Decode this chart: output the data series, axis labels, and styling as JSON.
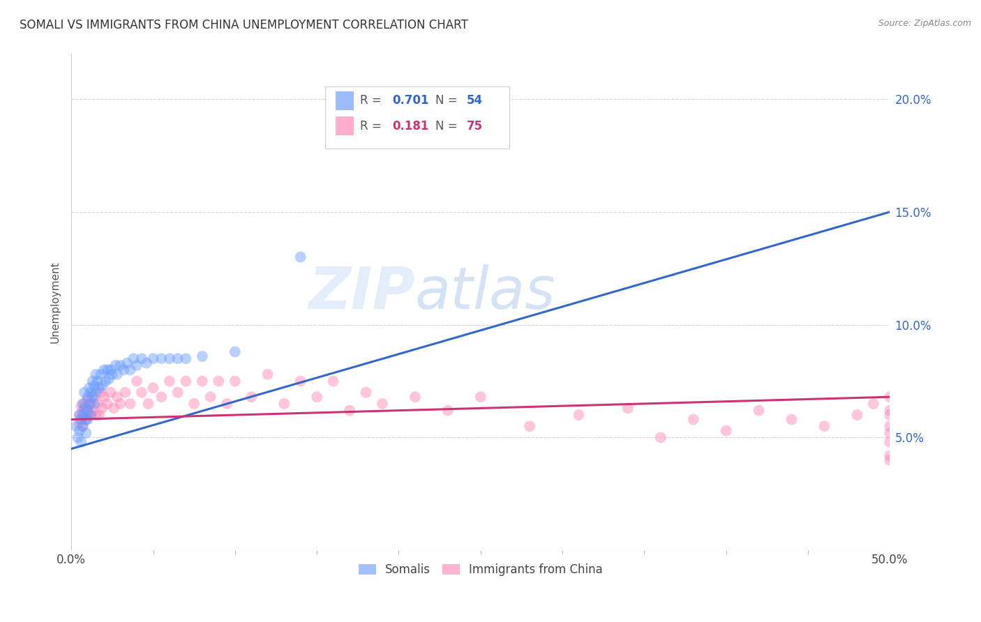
{
  "title": "SOMALI VS IMMIGRANTS FROM CHINA UNEMPLOYMENT CORRELATION CHART",
  "source": "Source: ZipAtlas.com",
  "ylabel": "Unemployment",
  "xlim": [
    0.0,
    0.5
  ],
  "ylim": [
    0.0,
    0.22
  ],
  "yticks": [
    0.05,
    0.1,
    0.15,
    0.2
  ],
  "ytick_labels": [
    "5.0%",
    "10.0%",
    "15.0%",
    "20.0%"
  ],
  "xticks_minor": [
    0.05,
    0.1,
    0.15,
    0.2,
    0.25,
    0.3,
    0.35,
    0.4,
    0.45
  ],
  "blue_color": "#6699ff",
  "pink_color": "#ff80b3",
  "trendline_blue": "#3366cc",
  "trendline_pink": "#cc3377",
  "watermark_zip": "ZIP",
  "watermark_atlas": "atlas",
  "background_color": "#ffffff",
  "legend_label_somali": "Somalis",
  "legend_label_china": "Immigrants from China",
  "blue_trend_x0": 0.0,
  "blue_trend_y0": 0.045,
  "blue_trend_x1": 0.5,
  "blue_trend_y1": 0.15,
  "pink_trend_x0": 0.0,
  "pink_trend_y0": 0.058,
  "pink_trend_x1": 0.5,
  "pink_trend_y1": 0.068,
  "somali_x": [
    0.003,
    0.004,
    0.005,
    0.005,
    0.006,
    0.006,
    0.007,
    0.007,
    0.007,
    0.008,
    0.008,
    0.009,
    0.009,
    0.01,
    0.01,
    0.01,
    0.011,
    0.011,
    0.012,
    0.012,
    0.013,
    0.013,
    0.014,
    0.014,
    0.015,
    0.015,
    0.016,
    0.017,
    0.018,
    0.019,
    0.02,
    0.021,
    0.022,
    0.023,
    0.024,
    0.025,
    0.027,
    0.028,
    0.03,
    0.032,
    0.034,
    0.036,
    0.038,
    0.04,
    0.043,
    0.046,
    0.05,
    0.055,
    0.06,
    0.065,
    0.07,
    0.08,
    0.1,
    0.14
  ],
  "somali_y": [
    0.055,
    0.05,
    0.06,
    0.053,
    0.058,
    0.048,
    0.065,
    0.06,
    0.055,
    0.07,
    0.063,
    0.058,
    0.052,
    0.068,
    0.062,
    0.058,
    0.072,
    0.065,
    0.07,
    0.06,
    0.075,
    0.068,
    0.073,
    0.065,
    0.078,
    0.07,
    0.075,
    0.072,
    0.078,
    0.073,
    0.08,
    0.075,
    0.08,
    0.076,
    0.08,
    0.078,
    0.082,
    0.078,
    0.082,
    0.08,
    0.083,
    0.08,
    0.085,
    0.082,
    0.085,
    0.083,
    0.085,
    0.085,
    0.085,
    0.085,
    0.085,
    0.086,
    0.088,
    0.13
  ],
  "china_x": [
    0.005,
    0.005,
    0.006,
    0.006,
    0.007,
    0.007,
    0.008,
    0.008,
    0.009,
    0.009,
    0.01,
    0.01,
    0.011,
    0.011,
    0.012,
    0.013,
    0.014,
    0.015,
    0.016,
    0.017,
    0.018,
    0.019,
    0.02,
    0.022,
    0.024,
    0.026,
    0.028,
    0.03,
    0.033,
    0.036,
    0.04,
    0.043,
    0.047,
    0.05,
    0.055,
    0.06,
    0.065,
    0.07,
    0.075,
    0.08,
    0.085,
    0.09,
    0.095,
    0.1,
    0.11,
    0.12,
    0.13,
    0.14,
    0.15,
    0.16,
    0.17,
    0.18,
    0.19,
    0.21,
    0.23,
    0.25,
    0.28,
    0.31,
    0.34,
    0.36,
    0.38,
    0.4,
    0.42,
    0.44,
    0.46,
    0.48,
    0.49,
    0.5,
    0.5,
    0.5,
    0.5,
    0.5,
    0.5,
    0.5,
    0.5
  ],
  "china_y": [
    0.06,
    0.056,
    0.064,
    0.058,
    0.062,
    0.055,
    0.065,
    0.06,
    0.063,
    0.058,
    0.067,
    0.062,
    0.065,
    0.06,
    0.065,
    0.062,
    0.068,
    0.06,
    0.065,
    0.06,
    0.07,
    0.063,
    0.068,
    0.065,
    0.07,
    0.063,
    0.068,
    0.065,
    0.07,
    0.065,
    0.075,
    0.07,
    0.065,
    0.072,
    0.068,
    0.075,
    0.07,
    0.075,
    0.065,
    0.075,
    0.068,
    0.075,
    0.065,
    0.075,
    0.068,
    0.078,
    0.065,
    0.075,
    0.068,
    0.075,
    0.062,
    0.07,
    0.065,
    0.068,
    0.062,
    0.068,
    0.055,
    0.06,
    0.063,
    0.05,
    0.058,
    0.053,
    0.062,
    0.058,
    0.055,
    0.06,
    0.065,
    0.062,
    0.052,
    0.04,
    0.048,
    0.055,
    0.06,
    0.068,
    0.042
  ]
}
